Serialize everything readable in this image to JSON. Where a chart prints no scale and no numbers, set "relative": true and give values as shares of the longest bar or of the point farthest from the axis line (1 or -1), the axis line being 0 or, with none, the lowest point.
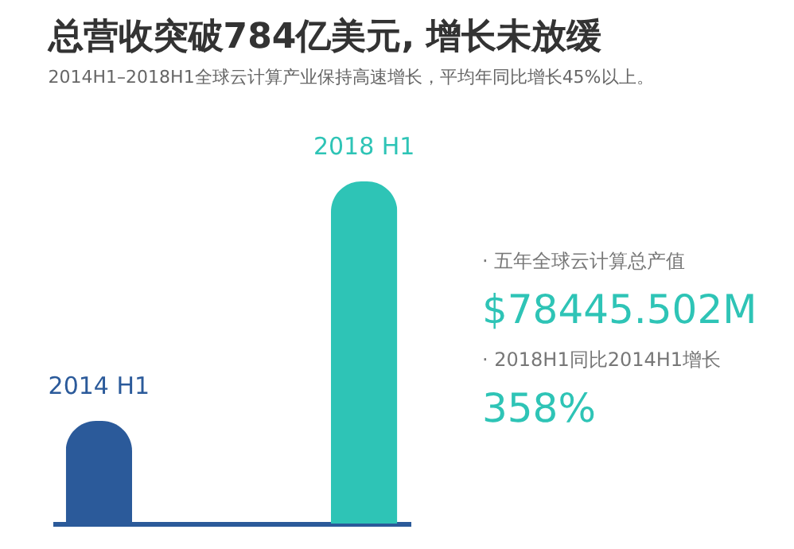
{
  "chart_data": {
    "type": "bar",
    "relative": true,
    "title": "总营收突破784亿美元, 增长未放缓",
    "subtitle": "2014H1–2018H1全球云计算产业保持高速增长，平均年同比增长45%以上。",
    "categories": [
      "2014 H1",
      "2018 H1"
    ],
    "values": [
      0.3,
      1
    ],
    "colors": [
      "#2b5a9a",
      "#2ec4b6"
    ],
    "annotations": [
      "· 五年全球云计算总产值",
      "$78445.502M",
      "· 2018H1同比2014H1增长",
      "358%"
    ]
  }
}
